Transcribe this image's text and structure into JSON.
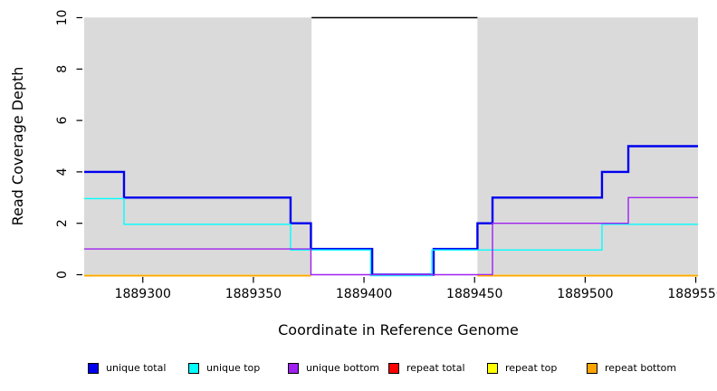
{
  "legend": {
    "items": [
      {
        "label": "unique total",
        "color": "#0000EE"
      },
      {
        "label": "unique top",
        "color": "#00FFFF"
      },
      {
        "label": "unique bottom",
        "color": "#A020F0"
      },
      {
        "label": "repeat total",
        "color": "#FF0000"
      },
      {
        "label": "repeat top",
        "color": "#FFFF00"
      },
      {
        "label": "repeat bottom",
        "color": "#FFA500"
      }
    ]
  },
  "chart_data": {
    "type": "line",
    "subtype": "step",
    "title": "",
    "xlabel": "Coordinate in Reference Genome",
    "ylabel": "Read Coverage Depth",
    "xlim": [
      1889273.5,
      1889551
    ],
    "ylim": [
      0,
      10
    ],
    "x_ticks": [
      1889300,
      1889350,
      1889400,
      1889450,
      1889500,
      1889550
    ],
    "x_tick_labels": [
      "1889300",
      "1889350",
      "1889400",
      "1889450",
      "1889500",
      "1889550"
    ],
    "y_ticks": [
      0,
      2,
      4,
      6,
      8,
      10
    ],
    "y_tick_labels": [
      "0",
      "2",
      "4",
      "6",
      "8",
      "10"
    ],
    "grid": false,
    "legend_position": "bottom",
    "background_color": "#FFFFFF",
    "shaded_regions": [
      {
        "x1": 1889273.5,
        "x2": 1889376.3,
        "color": "#DADADA"
      },
      {
        "x1": 1889451.3,
        "x2": 1889551.0,
        "color": "#DADADA"
      }
    ],
    "gap_line": {
      "x1": 1889376.3,
      "x2": 1889451.3,
      "y": 10,
      "color": "#000000"
    },
    "series": [
      {
        "name": "repeat total",
        "color": "#FF0000",
        "line_width": 1.3,
        "segments": [
          [
            [
              1889273.5,
              0
            ],
            [
              1889376,
              0
            ]
          ],
          [
            [
              1889451.3,
              0
            ],
            [
              1889551,
              0
            ]
          ]
        ]
      },
      {
        "name": "repeat top",
        "color": "#FFFF00",
        "line_width": 1.3,
        "segments": [
          [
            [
              1889273.5,
              0
            ],
            [
              1889376,
              0
            ]
          ],
          [
            [
              1889451.3,
              0
            ],
            [
              1889551,
              0
            ]
          ]
        ]
      },
      {
        "name": "unique total",
        "color": "#0000EE",
        "line_width": 2.4,
        "segments": [
          [
            [
              1889273.5,
              4
            ],
            [
              1889291.5,
              4
            ],
            [
              1889291.5,
              3
            ],
            [
              1889366.8,
              3
            ],
            [
              1889366.8,
              2
            ],
            [
              1889376,
              2
            ],
            [
              1889376,
              1
            ],
            [
              1889403.7,
              1
            ],
            [
              1889403.7,
              0
            ],
            [
              1889431.5,
              0
            ],
            [
              1889431.5,
              1
            ],
            [
              1889451.3,
              1
            ],
            [
              1889451.3,
              2
            ],
            [
              1889458.1,
              2
            ],
            [
              1889458.1,
              3
            ],
            [
              1889507.6,
              3
            ],
            [
              1889507.6,
              4
            ],
            [
              1889519.5,
              4
            ],
            [
              1889519.5,
              5
            ],
            [
              1889551,
              5
            ]
          ]
        ]
      },
      {
        "name": "unique top",
        "color": "#00FFFF",
        "line_width": 1.4,
        "segments": [
          [
            [
              1889273.5,
              3
            ],
            [
              1889291.5,
              3
            ],
            [
              1889291.5,
              2
            ],
            [
              1889366.8,
              2
            ],
            [
              1889366.8,
              1
            ],
            [
              1889403,
              1
            ],
            [
              1889403,
              0
            ],
            [
              1889430.7,
              0
            ],
            [
              1889430.7,
              1
            ],
            [
              1889507.6,
              1
            ],
            [
              1889507.6,
              2
            ],
            [
              1889551,
              2
            ]
          ]
        ]
      },
      {
        "name": "unique bottom",
        "color": "#A020F0",
        "line_width": 1.4,
        "segments": [
          [
            [
              1889273.5,
              1
            ],
            [
              1889376,
              1
            ],
            [
              1889376,
              0
            ],
            [
              1889458.1,
              0
            ],
            [
              1889458.1,
              2
            ],
            [
              1889519.5,
              2
            ],
            [
              1889519.5,
              3
            ],
            [
              1889551,
              3
            ]
          ]
        ]
      },
      {
        "name": "repeat bottom",
        "color": "#FFA500",
        "line_width": 1.5,
        "segments": [
          [
            [
              1889273.5,
              0
            ],
            [
              1889376,
              0
            ]
          ],
          [
            [
              1889451.3,
              0
            ],
            [
              1889551,
              0
            ]
          ]
        ]
      }
    ]
  }
}
